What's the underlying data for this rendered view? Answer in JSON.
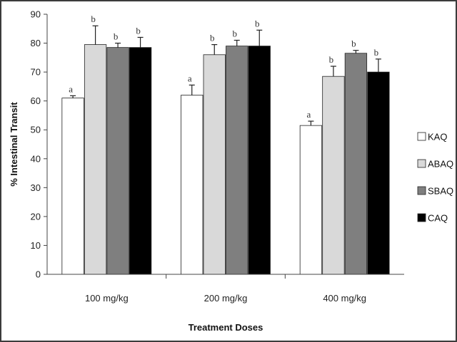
{
  "chart_data": {
    "type": "bar",
    "title": "",
    "xlabel": "Treatment Doses",
    "ylabel": "% Intestinal Transit",
    "ylim": [
      0,
      90
    ],
    "yticks": [
      0,
      10,
      20,
      30,
      40,
      50,
      60,
      70,
      80,
      90
    ],
    "categories": [
      "100 mg/kg",
      "200 mg/kg",
      "400 mg/kg"
    ],
    "legend_position": "right",
    "grid": false,
    "series": [
      {
        "name": "KAQ",
        "color": "#ffffff",
        "values": [
          61,
          62,
          51.5
        ],
        "errors": [
          0.8,
          3.5,
          1.5
        ],
        "labels": [
          "a",
          "a",
          "a"
        ]
      },
      {
        "name": "ABAQ",
        "color": "#d9d9d9",
        "values": [
          79.5,
          76,
          68.5
        ],
        "errors": [
          6.5,
          3.5,
          3.5
        ],
        "labels": [
          "b",
          "b",
          "b"
        ]
      },
      {
        "name": "SBAQ",
        "color": "#7f7f7f",
        "values": [
          78.5,
          79,
          76.5
        ],
        "errors": [
          1.5,
          2,
          1
        ],
        "labels": [
          "b",
          "b",
          "b"
        ]
      },
      {
        "name": "CAQ",
        "color": "#000000",
        "values": [
          78.5,
          79,
          70
        ],
        "errors": [
          3.5,
          5.5,
          4.5
        ],
        "labels": [
          "b",
          "b",
          "b"
        ]
      }
    ]
  }
}
